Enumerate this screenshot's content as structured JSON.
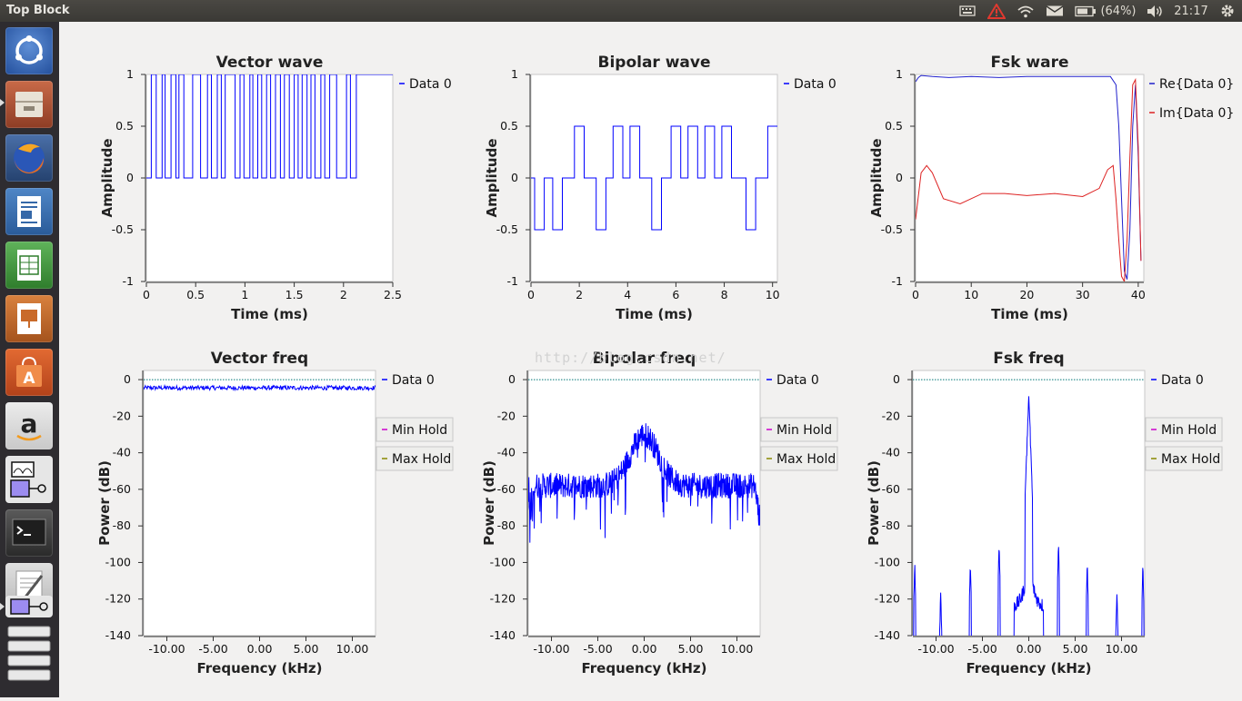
{
  "window": {
    "title": "Top Block"
  },
  "tray": {
    "battery": "(64%)",
    "clock": "21:17"
  },
  "icons": {
    "tray": [
      "keyboard-icon",
      "alert-icon",
      "wifi-icon",
      "mail-icon",
      "battery-icon",
      "volume-icon",
      "settings-gear-icon"
    ],
    "launcher": [
      "ubuntu-dash-icon",
      "file-manager-icon",
      "firefox-icon",
      "libreoffice-writer-icon",
      "libreoffice-calc-icon",
      "libreoffice-impress-icon",
      "software-center-icon",
      "amazon-icon",
      "gnuradio-companion-icon",
      "terminal-icon",
      "text-editor-icon",
      "gnuradio-flowgraph-icon",
      "workspace-stack-icon"
    ]
  },
  "watermark": "http://blog.csdn.net/",
  "chart_data": [
    {
      "type": "line",
      "title": "Vector wave",
      "xlabel": "Time (ms)",
      "ylabel": "Amplitude",
      "xlim": [
        0,
        2.5
      ],
      "ylim": [
        -1,
        1
      ],
      "xticks": [
        "0",
        "0.5",
        "1",
        "1.5",
        "2",
        "2.5"
      ],
      "yticks": [
        "1",
        "0.5",
        "0",
        "-0.5",
        "-1"
      ],
      "series": [
        {
          "name": "Data 0",
          "color": "#0000ff",
          "segments": [
            [
              0,
              0.05,
              0
            ],
            [
              0.05,
              0.1,
              1
            ],
            [
              0.1,
              0.16,
              0
            ],
            [
              0.16,
              0.19,
              1
            ],
            [
              0.19,
              0.25,
              0
            ],
            [
              0.25,
              0.3,
              1
            ],
            [
              0.3,
              0.33,
              0
            ],
            [
              0.33,
              0.38,
              1
            ],
            [
              0.38,
              0.47,
              0
            ],
            [
              0.47,
              0.55,
              1
            ],
            [
              0.55,
              0.62,
              0
            ],
            [
              0.62,
              0.66,
              1
            ],
            [
              0.66,
              0.72,
              0
            ],
            [
              0.72,
              0.76,
              1
            ],
            [
              0.76,
              0.8,
              0
            ],
            [
              0.8,
              0.9,
              1
            ],
            [
              0.9,
              0.95,
              0
            ],
            [
              0.95,
              0.99,
              1
            ],
            [
              0.99,
              1.05,
              0
            ],
            [
              1.05,
              1.08,
              1
            ],
            [
              1.08,
              1.13,
              0
            ],
            [
              1.13,
              1.17,
              1
            ],
            [
              1.17,
              1.22,
              0
            ],
            [
              1.22,
              1.26,
              1
            ],
            [
              1.26,
              1.31,
              0
            ],
            [
              1.31,
              1.36,
              1
            ],
            [
              1.36,
              1.4,
              0
            ],
            [
              1.4,
              1.45,
              1
            ],
            [
              1.45,
              1.5,
              0
            ],
            [
              1.5,
              1.54,
              1
            ],
            [
              1.54,
              1.58,
              0
            ],
            [
              1.58,
              1.63,
              1
            ],
            [
              1.63,
              1.67,
              0
            ],
            [
              1.67,
              1.71,
              1
            ],
            [
              1.71,
              1.77,
              0
            ],
            [
              1.77,
              1.81,
              1
            ],
            [
              1.81,
              1.86,
              0
            ],
            [
              1.86,
              1.93,
              1
            ],
            [
              1.93,
              2.03,
              0
            ],
            [
              2.03,
              2.07,
              1
            ],
            [
              2.07,
              2.13,
              0
            ],
            [
              2.13,
              2.5,
              1
            ]
          ]
        }
      ],
      "legend": [
        "Data 0"
      ]
    },
    {
      "type": "line",
      "title": "Bipolar wave",
      "xlabel": "Time (ms)",
      "ylabel": "Amplitude",
      "xlim": [
        0,
        10.2
      ],
      "ylim": [
        -1,
        1
      ],
      "xticks": [
        "0",
        "2",
        "4",
        "6",
        "8",
        "10"
      ],
      "yticks": [
        "1",
        "0.5",
        "0",
        "-0.5",
        "-1"
      ],
      "series": [
        {
          "name": "Data 0",
          "color": "#0000ff",
          "segments": [
            [
              0,
              0.15,
              0
            ],
            [
              0.15,
              0.55,
              -0.5
            ],
            [
              0.55,
              0.9,
              0
            ],
            [
              0.9,
              1.3,
              -0.5
            ],
            [
              1.3,
              1.8,
              0
            ],
            [
              1.8,
              2.2,
              0.5
            ],
            [
              2.2,
              2.7,
              0
            ],
            [
              2.7,
              3.1,
              -0.5
            ],
            [
              3.1,
              3.4,
              0
            ],
            [
              3.4,
              3.8,
              0.5
            ],
            [
              3.8,
              4.1,
              0
            ],
            [
              4.1,
              4.5,
              0.5
            ],
            [
              4.5,
              5.0,
              0
            ],
            [
              5.0,
              5.4,
              -0.5
            ],
            [
              5.4,
              5.8,
              0
            ],
            [
              5.8,
              6.2,
              0.5
            ],
            [
              6.2,
              6.5,
              0
            ],
            [
              6.5,
              6.9,
              0.5
            ],
            [
              6.9,
              7.2,
              0
            ],
            [
              7.2,
              7.6,
              0.5
            ],
            [
              7.6,
              7.9,
              0
            ],
            [
              7.9,
              8.3,
              0.5
            ],
            [
              8.3,
              8.9,
              0
            ],
            [
              8.9,
              9.3,
              -0.5
            ],
            [
              9.3,
              9.8,
              0
            ],
            [
              9.8,
              10.2,
              0.5
            ]
          ]
        }
      ],
      "legend": [
        "Data 0"
      ]
    },
    {
      "type": "line",
      "title": "Fsk ware",
      "xlabel": "Time (ms)",
      "ylabel": "Amplitude",
      "xlim": [
        0,
        41
      ],
      "ylim": [
        -1,
        1
      ],
      "xticks": [
        "0",
        "10",
        "20",
        "30",
        "40"
      ],
      "yticks": [
        "1",
        "0.5",
        "0",
        "-0.5",
        "-1"
      ],
      "series": [
        {
          "name": "Re{Data 0}",
          "color": "#2020cc",
          "x": [
            0,
            0.5,
            1,
            3,
            6,
            10,
            15,
            20,
            25,
            30,
            33,
            35,
            36,
            36.5,
            37,
            37.5,
            38,
            38.5,
            39,
            39.5,
            40,
            40.5
          ],
          "y": [
            0.93,
            0.97,
            0.99,
            0.98,
            0.97,
            0.98,
            0.97,
            0.98,
            0.98,
            0.98,
            0.98,
            0.98,
            0.9,
            0.5,
            -0.2,
            -0.9,
            -0.98,
            -0.5,
            0.5,
            0.9,
            0.2,
            -0.8
          ]
        },
        {
          "name": "Im{Data 0}",
          "color": "#dd2222",
          "x": [
            0,
            1,
            2,
            3,
            5,
            8,
            12,
            16,
            20,
            25,
            30,
            33,
            34.5,
            35.5,
            36,
            36.5,
            37,
            37.5,
            38,
            38.5,
            39,
            39.5,
            40,
            40.5
          ],
          "y": [
            -0.4,
            0.05,
            0.12,
            0.05,
            -0.2,
            -0.25,
            -0.15,
            -0.15,
            -0.17,
            -0.15,
            -0.18,
            -0.1,
            0.08,
            0.12,
            -0.2,
            -0.6,
            -0.95,
            -1.0,
            -0.6,
            0.2,
            0.9,
            0.95,
            0.3,
            -0.8
          ]
        }
      ],
      "legend": [
        "Re{Data 0}",
        "Im{Data 0}"
      ]
    },
    {
      "type": "line",
      "title": "Vector freq",
      "xlabel": "Frequency (kHz)",
      "ylabel": "Power (dB)",
      "xlim": [
        -12.5,
        12.5
      ],
      "ylim": [
        -140,
        5
      ],
      "xticks": [
        "-10.00",
        "-5.00",
        "0.00",
        "5.00",
        "10.00"
      ],
      "yticks": [
        "0",
        "-20",
        "-40",
        "-60",
        "-80",
        "-100",
        "-120",
        "-140"
      ],
      "reference_line_db": 0,
      "series": [
        {
          "name": "Data 0",
          "color": "#0000ff",
          "profile": "flat",
          "level_db": -4.5,
          "jitter_db": 1.2
        }
      ],
      "legend": [
        "Data 0",
        "Min Hold",
        "Max Hold"
      ]
    },
    {
      "type": "line",
      "title": "Bipolar freq",
      "xlabel": "Frequency (kHz)",
      "ylabel": "Power (dB)",
      "xlim": [
        -12.5,
        12.5
      ],
      "ylim": [
        -140,
        5
      ],
      "xticks": [
        "-10.00",
        "-5.00",
        "0.00",
        "5.00",
        "10.00"
      ],
      "yticks": [
        "0",
        "-20",
        "-40",
        "-60",
        "-80",
        "-100",
        "-120",
        "-140"
      ],
      "reference_line_db": 0,
      "series": [
        {
          "name": "Data 0",
          "color": "#0000ff",
          "profile": "noisy-peak",
          "level_db": -58,
          "peak_db": -30,
          "jitter_db": 14
        }
      ],
      "legend": [
        "Data 0",
        "Min Hold",
        "Max Hold"
      ]
    },
    {
      "type": "line",
      "title": "Fsk freq",
      "xlabel": "Frequency (kHz)",
      "ylabel": "Power (dB)",
      "xlim": [
        -12.5,
        12.5
      ],
      "ylim": [
        -140,
        5
      ],
      "xticks": [
        "-10.00",
        "-5.00",
        "0.00",
        "5.00",
        "10.00"
      ],
      "yticks": [
        "0",
        "-20",
        "-40",
        "-60",
        "-80",
        "-100",
        "-120",
        "-140"
      ],
      "reference_line_db": 0,
      "series": [
        {
          "name": "Data 0",
          "color": "#0000ff",
          "profile": "spikes",
          "peak_db": -9,
          "spikes": [
            [
              -12.3,
              -100
            ],
            [
              -9.5,
              -116
            ],
            [
              -6.3,
              -100
            ],
            [
              -3.2,
              -90
            ],
            [
              3.2,
              -90
            ],
            [
              6.3,
              -100
            ],
            [
              9.5,
              -116
            ],
            [
              12.3,
              -102
            ]
          ]
        }
      ],
      "legend": [
        "Data 0",
        "Min Hold",
        "Max Hold"
      ]
    }
  ],
  "legend_colors": {
    "Data 0": "#0000ff",
    "Min Hold": "#cc00cc",
    "Max Hold": "#888800"
  }
}
